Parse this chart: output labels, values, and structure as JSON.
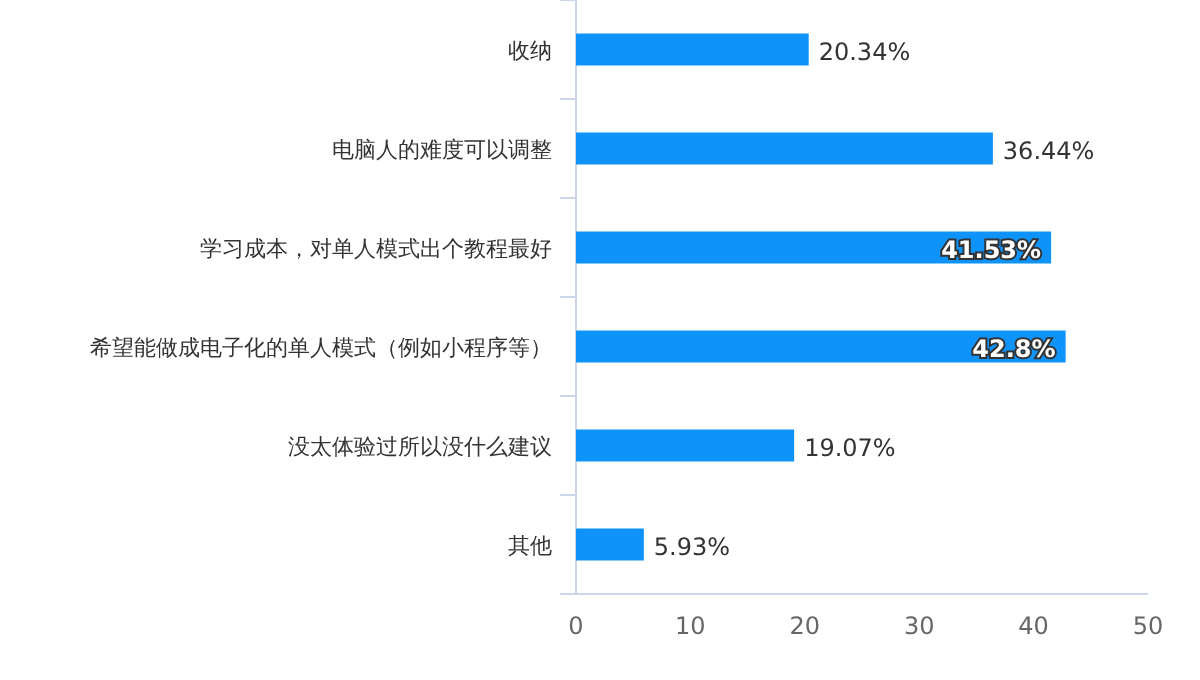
{
  "chart_data": {
    "type": "bar",
    "orientation": "horizontal",
    "color": "#0e93fb",
    "categories": [
      "收纳",
      "电脑人的难度可以调整",
      "学习成本，对单人模式出个教程最好",
      "希望能做成电子化的单人模式（例如小程序等）",
      "没太体验过所以没什么建议",
      "其他"
    ],
    "values": [
      20.34,
      36.44,
      41.53,
      42.8,
      19.07,
      5.93
    ],
    "value_labels": [
      "20.34%",
      "36.44%",
      "41.53%",
      "42.8%",
      "19.07%",
      "5.93%"
    ],
    "xlim": [
      0,
      50
    ],
    "xticks": [
      0,
      10,
      20,
      30,
      40,
      50
    ]
  }
}
